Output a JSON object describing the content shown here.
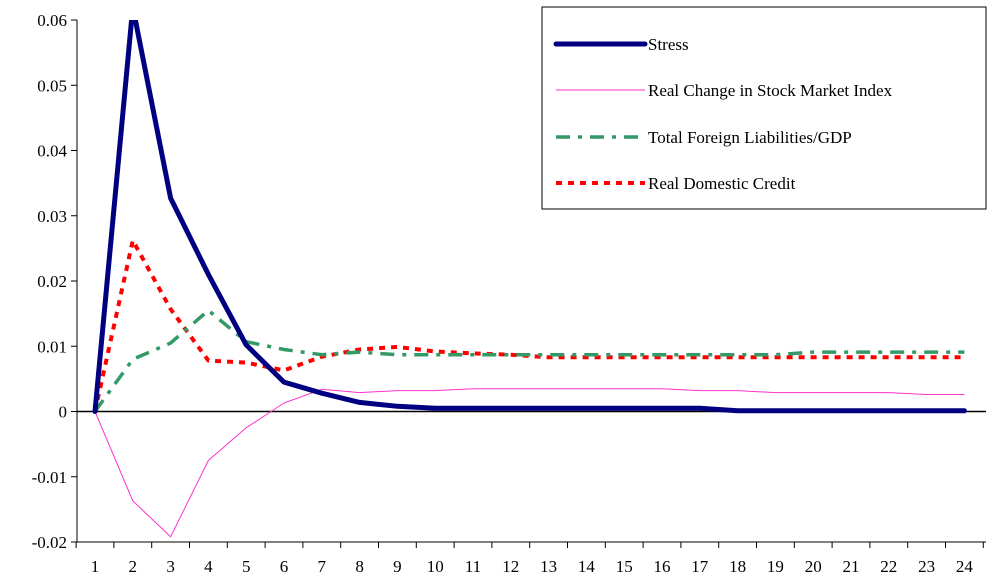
{
  "chart_data": {
    "type": "line",
    "x": [
      1,
      2,
      3,
      4,
      5,
      6,
      7,
      8,
      9,
      10,
      11,
      12,
      13,
      14,
      15,
      16,
      17,
      18,
      19,
      20,
      21,
      22,
      23,
      24
    ],
    "ylim": [
      -0.02,
      0.06
    ],
    "y_ticks": [
      "0.06",
      "0.05",
      "0.04",
      "0.03",
      "0.02",
      "0.01",
      "0",
      "-0.01",
      "-0.02"
    ],
    "y_tick_values": [
      0.06,
      0.05,
      0.04,
      0.03,
      0.02,
      0.01,
      0,
      -0.01,
      -0.02
    ],
    "x_ticks": [
      "1",
      "2",
      "3",
      "4",
      "5",
      "6",
      "7",
      "8",
      "9",
      "10",
      "11",
      "12",
      "13",
      "14",
      "15",
      "16",
      "17",
      "18",
      "19",
      "20",
      "21",
      "22",
      "23",
      "24"
    ],
    "grid": false,
    "zero_line": true,
    "legend_position": "top-right",
    "series": [
      {
        "name": "Stress",
        "color": "#000080",
        "style": "solid-thick",
        "values": [
          0,
          0.062,
          0.0327,
          0.021,
          0.0102,
          0.0045,
          0.0028,
          0.0014,
          0.0008,
          0.0005,
          0.0005,
          0.0005,
          0.0005,
          0.0005,
          0.0005,
          0.0005,
          0.0005,
          0.0001,
          0.0001,
          0.0001,
          0.0001,
          0.0001,
          0.0001,
          0.0001
        ]
      },
      {
        "name": "Real Change in Stock Market Index",
        "color": "#ff33cc",
        "style": "solid-thin",
        "values": [
          0,
          -0.0137,
          -0.0192,
          -0.0075,
          -0.0025,
          0.0013,
          0.0034,
          0.0029,
          0.0032,
          0.0032,
          0.0035,
          0.0035,
          0.0035,
          0.0035,
          0.0035,
          0.0035,
          0.0032,
          0.0032,
          0.0029,
          0.0029,
          0.0029,
          0.0029,
          0.0026,
          0.0026
        ]
      },
      {
        "name": "Total Foreign Liabilities/GDP",
        "color": "#339966",
        "style": "dash-dot",
        "values": [
          0,
          0.008,
          0.0105,
          0.0155,
          0.0107,
          0.0095,
          0.0087,
          0.0091,
          0.0087,
          0.0087,
          0.0087,
          0.0087,
          0.0087,
          0.0087,
          0.0087,
          0.0087,
          0.0087,
          0.0087,
          0.0087,
          0.0091,
          0.0091,
          0.0091,
          0.0091,
          0.0091
        ]
      },
      {
        "name": "Real Domestic Credit",
        "color": "#ff0000",
        "style": "dotted",
        "values": [
          0,
          0.0262,
          0.0157,
          0.0078,
          0.0075,
          0.0063,
          0.0084,
          0.0095,
          0.0099,
          0.0092,
          0.0089,
          0.0087,
          0.0083,
          0.0083,
          0.0083,
          0.0083,
          0.0083,
          0.0083,
          0.0083,
          0.0083,
          0.0083,
          0.0083,
          0.0083,
          0.0083
        ]
      }
    ]
  }
}
